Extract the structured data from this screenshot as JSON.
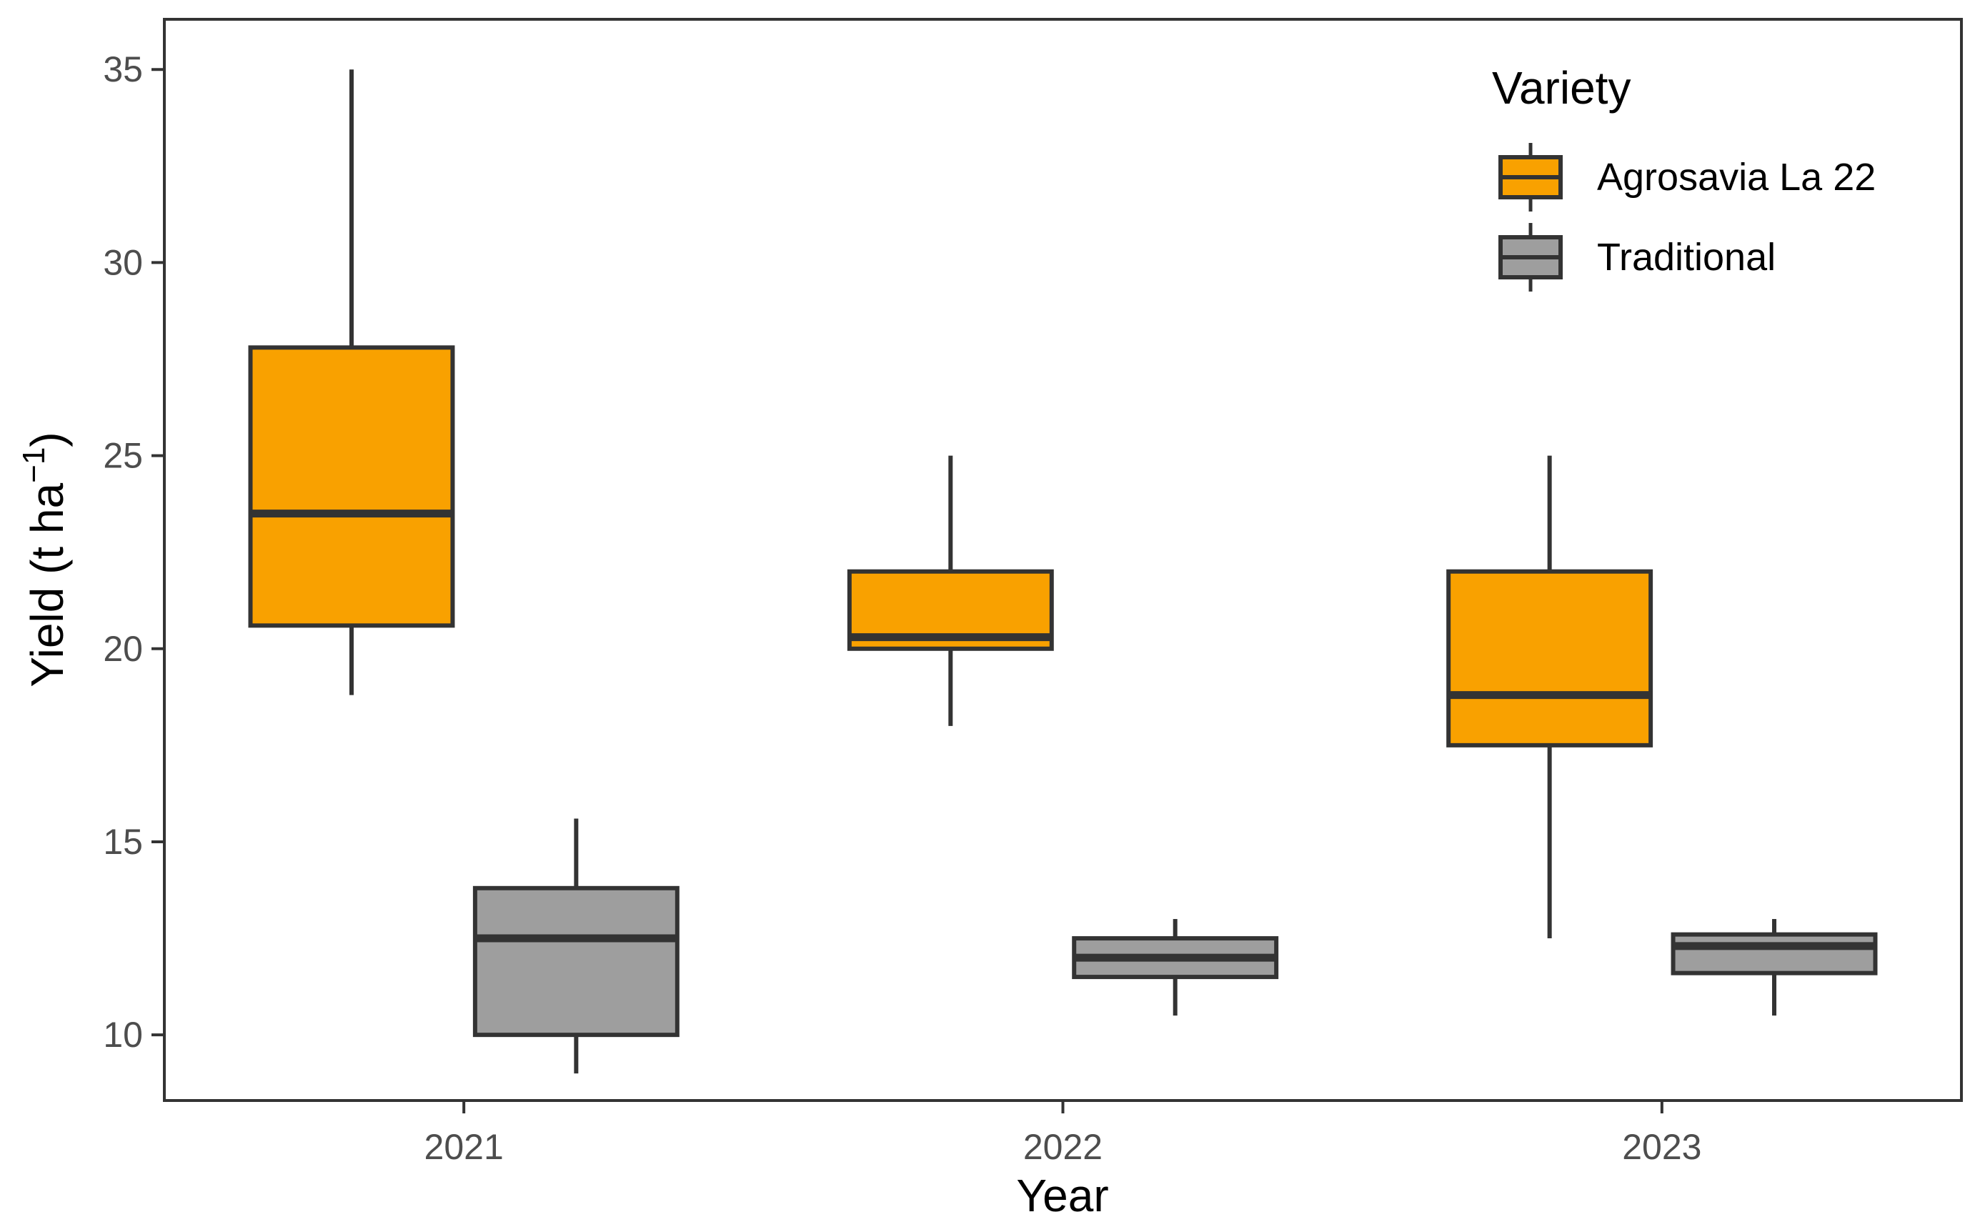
{
  "chart_data": {
    "type": "boxplot",
    "xlabel": "Year",
    "ylabel": "Yield (t ha",
    "ylabel_superscript": "−1",
    "ylabel_close": ")",
    "categories": [
      "2021",
      "2022",
      "2023"
    ],
    "ylim": [
      8.3,
      36.3
    ],
    "yticks": [
      10,
      15,
      20,
      25,
      30,
      35
    ],
    "grid": false,
    "legend": {
      "title": "Variety",
      "placement": "top-right",
      "entries": [
        "Agrosavia La 22",
        "Traditional"
      ]
    },
    "series": [
      {
        "name": "Agrosavia La 22",
        "color": "#F9A100",
        "boxes": [
          {
            "category": "2021",
            "min": 18.8,
            "q1": 20.6,
            "median": 23.5,
            "q3": 27.8,
            "max": 35.0
          },
          {
            "category": "2022",
            "min": 18.0,
            "q1": 20.0,
            "median": 20.3,
            "q3": 22.0,
            "max": 25.0
          },
          {
            "category": "2023",
            "min": 12.5,
            "q1": 17.5,
            "median": 18.8,
            "q3": 22.0,
            "max": 25.0
          }
        ]
      },
      {
        "name": "Traditional",
        "color": "#9E9E9E",
        "boxes": [
          {
            "category": "2021",
            "min": 9.0,
            "q1": 10.0,
            "median": 12.5,
            "q3": 13.8,
            "max": 15.6
          },
          {
            "category": "2022",
            "min": 10.5,
            "q1": 11.5,
            "median": 12.0,
            "q3": 12.5,
            "max": 13.0
          },
          {
            "category": "2023",
            "min": 10.5,
            "q1": 11.6,
            "median": 12.3,
            "q3": 12.6,
            "max": 13.0
          }
        ]
      }
    ],
    "outline_color": "#333333"
  }
}
